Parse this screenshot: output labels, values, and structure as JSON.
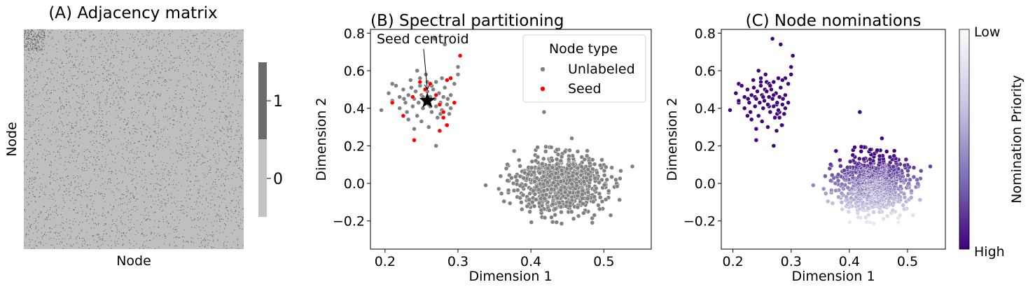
{
  "colors": {
    "adjacency_background": "#bfbfbf",
    "adjacency_edge": "#525252",
    "colorbar_one": "#6b6b6b",
    "colorbar_zero": "#c4c4c4",
    "unlabeled": "#808080",
    "seed": "#ff0000",
    "priority_high": "#3f007d",
    "priority_low": "#fcfbfd"
  },
  "chart_data": [
    {
      "type": "heatmap",
      "title": "(A) Adjacency matrix",
      "xlabel": "Node",
      "ylabel": "Node",
      "colorbar": {
        "ticks": [
          "0",
          "1"
        ]
      }
    },
    {
      "type": "scatter",
      "title": "(B) Spectral partitioning",
      "xlabel": "Dimension 1",
      "ylabel": "Dimension 2",
      "xlim": [
        0.18,
        0.565
      ],
      "ylim": [
        -0.35,
        0.82
      ],
      "xticks": [
        "0.2",
        "0.3",
        "0.4",
        "0.5"
      ],
      "yticks": [
        "−0.2",
        "0.0",
        "0.2",
        "0.4",
        "0.6",
        "0.8"
      ],
      "legend": {
        "title": "Node type",
        "placement": "top-right",
        "entries": [
          "Unlabeled",
          "Seed"
        ]
      },
      "annotation": {
        "text": "Seed centroid",
        "x": 0.258,
        "y": 0.44
      },
      "series": [
        {
          "name": "Unlabeled",
          "points": [
            [
              0.195,
              0.39
            ],
            [
              0.205,
              0.48
            ],
            [
              0.21,
              0.44
            ],
            [
              0.215,
              0.52
            ],
            [
              0.22,
              0.46
            ],
            [
              0.22,
              0.4
            ],
            [
              0.225,
              0.5
            ],
            [
              0.228,
              0.43
            ],
            [
              0.23,
              0.38
            ],
            [
              0.232,
              0.47
            ],
            [
              0.235,
              0.55
            ],
            [
              0.238,
              0.41
            ],
            [
              0.24,
              0.45
            ],
            [
              0.242,
              0.49
            ],
            [
              0.244,
              0.36
            ],
            [
              0.246,
              0.43
            ],
            [
              0.248,
              0.52
            ],
            [
              0.25,
              0.47
            ],
            [
              0.252,
              0.4
            ],
            [
              0.254,
              0.44
            ],
            [
              0.256,
              0.58
            ],
            [
              0.258,
              0.49
            ],
            [
              0.26,
              0.42
            ],
            [
              0.262,
              0.46
            ],
            [
              0.264,
              0.38
            ],
            [
              0.266,
              0.5
            ],
            [
              0.268,
              0.45
            ],
            [
              0.27,
              0.41
            ],
            [
              0.272,
              0.35
            ],
            [
              0.274,
              0.48
            ],
            [
              0.276,
              0.43
            ],
            [
              0.278,
              0.39
            ],
            [
              0.28,
              0.46
            ],
            [
              0.282,
              0.51
            ],
            [
              0.285,
              0.42
            ],
            [
              0.288,
              0.37
            ],
            [
              0.29,
              0.47
            ],
            [
              0.295,
              0.53
            ],
            [
              0.3,
              0.62
            ],
            [
              0.268,
              0.77
            ],
            [
              0.282,
              0.74
            ],
            [
              0.3,
              0.58
            ],
            [
              0.26,
              0.3
            ],
            [
              0.27,
              0.2
            ],
            [
              0.25,
              0.33
            ],
            [
              0.24,
              0.29
            ],
            [
              0.232,
              0.34
            ],
            [
              0.236,
              0.51
            ],
            [
              0.248,
              0.56
            ],
            [
              0.258,
              0.54
            ],
            [
              0.264,
              0.52
            ],
            [
              0.276,
              0.37
            ],
            [
              0.284,
              0.31
            ],
            [
              0.29,
              0.4
            ],
            [
              0.278,
              0.56
            ],
            [
              0.244,
              0.6
            ],
            [
              0.252,
              0.46
            ],
            [
              0.262,
              0.41
            ],
            [
              0.27,
              0.54
            ],
            [
              0.226,
              0.45
            ],
            [
              0.21,
              0.53
            ],
            [
              0.286,
              0.45
            ],
            [
              0.418,
              0.38
            ],
            [
              0.338,
              -0.01
            ],
            [
              0.456,
              0.24
            ]
          ]
        },
        {
          "name": "Seed",
          "points": [
            [
              0.21,
              0.43
            ],
            [
              0.225,
              0.36
            ],
            [
              0.24,
              0.23
            ],
            [
              0.238,
              0.46
            ],
            [
              0.248,
              0.54
            ],
            [
              0.255,
              0.5
            ],
            [
              0.262,
              0.53
            ],
            [
              0.27,
              0.47
            ],
            [
              0.275,
              0.42
            ],
            [
              0.28,
              0.38
            ],
            [
              0.285,
              0.55
            ],
            [
              0.29,
              0.56
            ],
            [
              0.295,
              0.43
            ],
            [
              0.285,
              0.31
            ],
            [
              0.275,
              0.28
            ],
            [
              0.303,
              0.68
            ],
            [
              0.28,
              0.35
            ]
          ]
        }
      ],
      "cluster": {
        "name": "Unlabeled",
        "center": [
          0.44,
          0.0
        ],
        "spread": [
          0.03,
          0.075
        ],
        "count": 900
      }
    },
    {
      "type": "scatter",
      "title": "(C) Node nominations",
      "xlabel": "Dimension 1",
      "ylabel": "Dimension 2",
      "xlim": [
        0.18,
        0.565
      ],
      "ylim": [
        -0.35,
        0.82
      ],
      "xticks": [
        "0.2",
        "0.3",
        "0.4",
        "0.5"
      ],
      "yticks": [
        "−0.2",
        "0.0",
        "0.2",
        "0.4",
        "0.6",
        "0.8"
      ],
      "colorbar": {
        "label": "Nomination Priority",
        "top_label": "Low",
        "bottom_label": "High"
      }
    }
  ]
}
